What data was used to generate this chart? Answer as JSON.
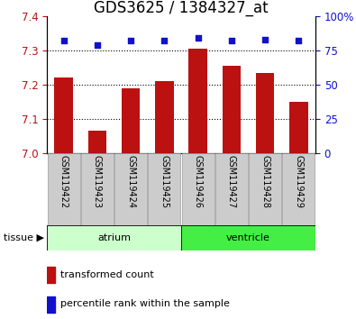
{
  "title": "GDS3625 / 1384327_at",
  "samples": [
    "GSM119422",
    "GSM119423",
    "GSM119424",
    "GSM119425",
    "GSM119426",
    "GSM119427",
    "GSM119428",
    "GSM119429"
  ],
  "transformed_counts": [
    7.22,
    7.065,
    7.19,
    7.21,
    7.305,
    7.255,
    7.235,
    7.15
  ],
  "percentile_ranks": [
    82,
    79,
    82,
    82,
    84,
    82,
    83,
    82
  ],
  "ylim_left": [
    7.0,
    7.4
  ],
  "ylim_right": [
    0,
    100
  ],
  "yticks_left": [
    7.0,
    7.1,
    7.2,
    7.3,
    7.4
  ],
  "yticks_right": [
    0,
    25,
    50,
    75,
    100
  ],
  "yticklabels_right": [
    "0",
    "25",
    "50",
    "75",
    "100%"
  ],
  "bar_color": "#bb1111",
  "dot_color": "#1111cc",
  "tissue_groups": [
    {
      "label": "atrium",
      "samples": [
        0,
        1,
        2,
        3
      ],
      "color": "#ccffcc"
    },
    {
      "label": "ventricle",
      "samples": [
        4,
        5,
        6,
        7
      ],
      "color": "#44ee44"
    }
  ],
  "legend_items": [
    {
      "label": "transformed count",
      "color": "#bb1111"
    },
    {
      "label": "percentile rank within the sample",
      "color": "#1111cc"
    }
  ],
  "grid_yticks": [
    7.1,
    7.2,
    7.3
  ],
  "bar_width": 0.55,
  "title_fontsize": 12,
  "tick_fontsize": 8.5,
  "sample_fontsize": 7,
  "legend_fontsize": 8,
  "tissue_fontsize": 8,
  "tissue_arrow": "▶"
}
